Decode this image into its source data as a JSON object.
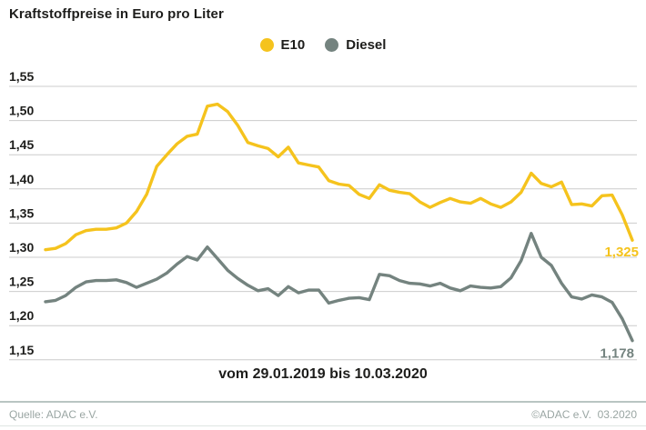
{
  "title": "Kraftstoffpreise in Euro pro Liter",
  "legend": [
    {
      "label": "E10",
      "color": "#F5C31D"
    },
    {
      "label": "Diesel",
      "color": "#74837F"
    }
  ],
  "chart_data": {
    "type": "line",
    "title": "Kraftstoffpreise in Euro pro Liter",
    "xlabel": "vom 29.01.2019 bis 10.03.2020",
    "ylabel": "Euro pro Liter",
    "ylim": [
      1.15,
      1.55
    ],
    "ytick_step": 0.05,
    "ytick_labels": [
      "1,55",
      "1,50",
      "1,45",
      "1,40",
      "1,35",
      "1,30",
      "1,25",
      "1,20",
      "1,15"
    ],
    "grid": true,
    "grid_color": "#cccccc",
    "legend_position": "top-center",
    "series": [
      {
        "name": "E10",
        "color": "#F5C31D",
        "end_label": "1,325",
        "end_value": 1.325,
        "values": [
          1.311,
          1.313,
          1.32,
          1.333,
          1.339,
          1.341,
          1.341,
          1.343,
          1.35,
          1.367,
          1.392,
          1.433,
          1.45,
          1.466,
          1.477,
          1.48,
          1.521,
          1.524,
          1.513,
          1.493,
          1.468,
          1.463,
          1.459,
          1.447,
          1.461,
          1.438,
          1.435,
          1.432,
          1.412,
          1.407,
          1.405,
          1.392,
          1.386,
          1.406,
          1.398,
          1.395,
          1.393,
          1.381,
          1.373,
          1.38,
          1.386,
          1.381,
          1.379,
          1.386,
          1.378,
          1.373,
          1.381,
          1.395,
          1.423,
          1.408,
          1.403,
          1.41,
          1.377,
          1.378,
          1.375,
          1.39,
          1.391,
          1.362,
          1.325
        ]
      },
      {
        "name": "Diesel",
        "color": "#74837F",
        "end_label": "1,178",
        "end_value": 1.178,
        "values": [
          1.235,
          1.237,
          1.244,
          1.256,
          1.264,
          1.266,
          1.266,
          1.267,
          1.263,
          1.256,
          1.262,
          1.268,
          1.277,
          1.29,
          1.301,
          1.296,
          1.315,
          1.298,
          1.281,
          1.269,
          1.259,
          1.251,
          1.254,
          1.244,
          1.257,
          1.248,
          1.252,
          1.252,
          1.233,
          1.237,
          1.24,
          1.241,
          1.238,
          1.275,
          1.273,
          1.266,
          1.262,
          1.261,
          1.258,
          1.262,
          1.255,
          1.251,
          1.258,
          1.256,
          1.255,
          1.257,
          1.27,
          1.295,
          1.335,
          1.3,
          1.288,
          1.262,
          1.242,
          1.239,
          1.245,
          1.242,
          1.234,
          1.21,
          1.178
        ]
      }
    ]
  },
  "footer": {
    "source": "Quelle: ADAC e.V.",
    "copyright": "©ADAC e.V.  03.2020"
  }
}
